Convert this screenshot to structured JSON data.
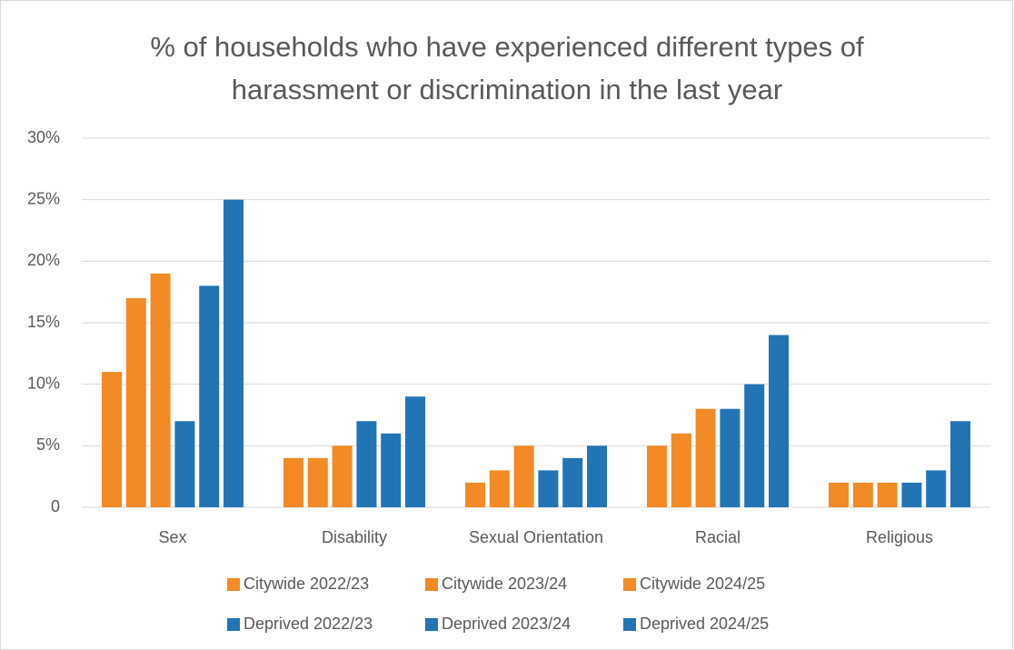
{
  "chart_data": {
    "type": "bar",
    "title": "% of households who have experienced different types of harassment or discrimination in the last year",
    "categories": [
      "Sex",
      "Disability",
      "Sexual Orientation",
      "Racial",
      "Religious"
    ],
    "series": [
      {
        "name": "Citywide 2022/23",
        "color": "#f28a26",
        "values": [
          11,
          4,
          2,
          5,
          2
        ]
      },
      {
        "name": "Citywide 2023/24",
        "color": "#f28a26",
        "values": [
          17,
          4,
          3,
          6,
          2
        ]
      },
      {
        "name": "Citywide 2024/25",
        "color": "#f28a26",
        "values": [
          19,
          5,
          5,
          8,
          2
        ]
      },
      {
        "name": "Deprived 2022/23",
        "color": "#2274b5",
        "values": [
          7,
          7,
          3,
          8,
          2
        ]
      },
      {
        "name": "Deprived 2023/24",
        "color": "#2274b5",
        "values": [
          18,
          6,
          4,
          10,
          3
        ]
      },
      {
        "name": "Deprived 2024/25",
        "color": "#2274b5",
        "values": [
          25,
          9,
          5,
          14,
          7
        ]
      }
    ],
    "ylim": [
      0,
      30
    ],
    "yticks": [
      0,
      {
        "value": 5,
        "label": "5%"
      },
      {
        "value": 10,
        "label": "10%"
      },
      {
        "value": 15,
        "label": "15%"
      },
      {
        "value": 20,
        "label": "20%"
      },
      {
        "value": 25,
        "label": "25%"
      },
      {
        "value": 30,
        "label": "30%"
      }
    ],
    "grid": true,
    "legend": "bottom"
  }
}
